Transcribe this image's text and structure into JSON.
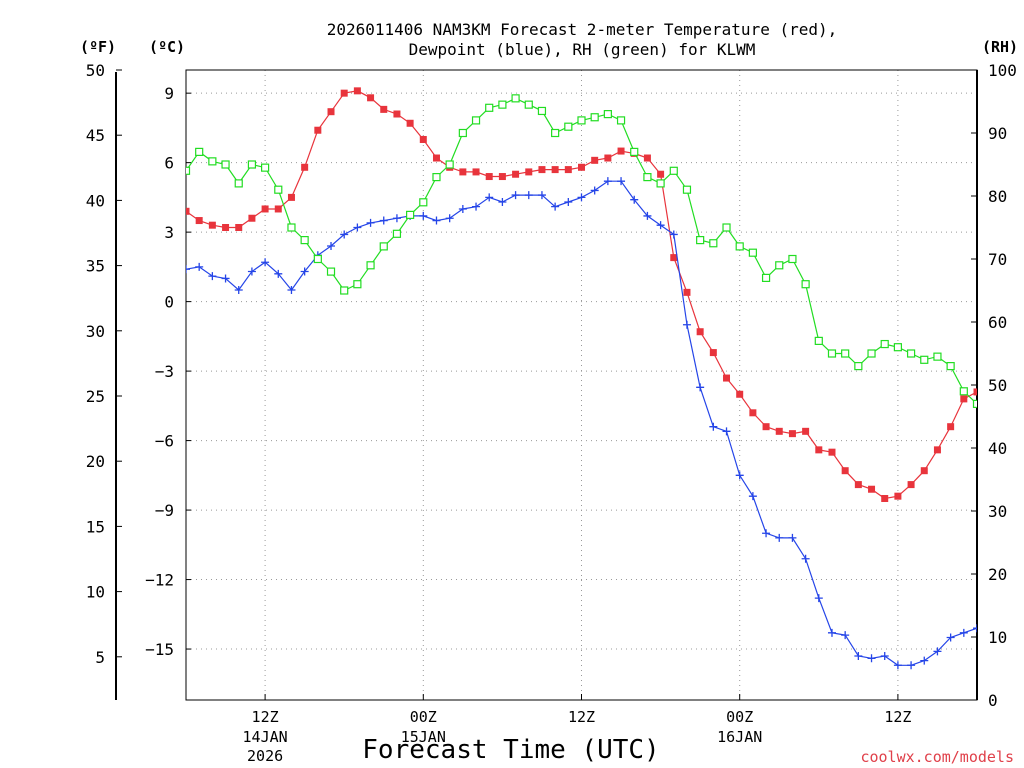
{
  "chart_data": {
    "type": "line",
    "title_line1": "2026011406 NAM3KM Forecast 2-meter Temperature (red),",
    "title_line2": "Dewpoint (blue), RH (green) for KLWM",
    "xlabel": "Forecast Time (UTC)",
    "credit": "coolwx.com/models",
    "units": {
      "fahrenheit": "(ºF)",
      "celsius": "(ºC)",
      "rh": "(RH)"
    },
    "left_axis_c": {
      "ylim": [
        -17.2,
        10.0
      ],
      "ticks": [
        9,
        6,
        3,
        0,
        -3,
        -6,
        -9,
        -12,
        -15
      ],
      "tick_labels": [
        "9",
        "6",
        "3",
        "0",
        "−3",
        "−6",
        "−9",
        "−12",
        "−15"
      ]
    },
    "left_axis_f": {
      "ticks": [
        50,
        45,
        40,
        35,
        30,
        25,
        20,
        15,
        10,
        5
      ],
      "tick_labels": [
        "50",
        "45",
        "40",
        "35",
        "30",
        "25",
        "20",
        "15",
        "10",
        "5"
      ]
    },
    "right_axis_rh": {
      "ylim": [
        0,
        100
      ],
      "ticks": [
        100,
        90,
        80,
        70,
        60,
        50,
        40,
        30,
        20,
        10,
        0
      ],
      "tick_labels": [
        "100",
        "90",
        "80",
        "70",
        "60",
        "50",
        "40",
        "30",
        "20",
        "10",
        "0"
      ]
    },
    "x_axis": {
      "unit": "forecast hour",
      "xlim": [
        0,
        60
      ],
      "ticks": [
        {
          "hour": 6,
          "label": "12Z",
          "date": "14JAN",
          "year": "2026"
        },
        {
          "hour": 18,
          "label": "00Z",
          "date": "15JAN",
          "year": ""
        },
        {
          "hour": 30,
          "label": "12Z",
          "date": "",
          "year": ""
        },
        {
          "hour": 42,
          "label": "00Z",
          "date": "16JAN",
          "year": ""
        },
        {
          "hour": 54,
          "label": "12Z",
          "date": "",
          "year": ""
        }
      ]
    },
    "series": [
      {
        "name": "Temperature (red)",
        "unit": "C",
        "color": "#e8343c",
        "marker": "filled-square",
        "x": [
          0,
          1,
          2,
          3,
          4,
          5,
          6,
          7,
          8,
          9,
          10,
          11,
          12,
          13,
          14,
          15,
          16,
          17,
          18,
          19,
          20,
          21,
          22,
          23,
          24,
          25,
          26,
          27,
          28,
          29,
          30,
          31,
          32,
          33,
          34,
          35,
          36,
          37,
          38,
          39,
          40,
          41,
          42,
          43,
          44,
          45,
          46,
          47,
          48,
          49,
          50,
          51,
          52,
          53,
          54,
          55,
          56,
          57,
          58,
          59,
          60
        ],
        "values": [
          3.9,
          3.5,
          3.3,
          3.2,
          3.2,
          3.6,
          4.0,
          4.0,
          4.5,
          5.8,
          7.4,
          8.2,
          9.0,
          9.1,
          8.8,
          8.3,
          8.1,
          7.7,
          7.0,
          6.2,
          5.8,
          5.6,
          5.6,
          5.4,
          5.4,
          5.5,
          5.6,
          5.7,
          5.7,
          5.7,
          5.8,
          6.1,
          6.2,
          6.5,
          6.4,
          6.2,
          5.5,
          1.9,
          0.4,
          -1.3,
          -2.2,
          -3.3,
          -4.0,
          -4.8,
          -5.4,
          -5.6,
          -5.7,
          -5.6,
          -6.4,
          -6.5,
          -7.3,
          -7.9,
          -8.1,
          -8.5,
          -8.4,
          -7.9,
          -7.3,
          -6.4,
          -5.4,
          -4.2,
          -3.9
        ]
      },
      {
        "name": "Dewpoint (blue)",
        "unit": "C",
        "color": "#2545e8",
        "marker": "plus",
        "x": [
          0,
          1,
          2,
          3,
          4,
          5,
          6,
          7,
          8,
          9,
          10,
          11,
          12,
          13,
          14,
          15,
          16,
          17,
          18,
          19,
          20,
          21,
          22,
          23,
          24,
          25,
          26,
          27,
          28,
          29,
          30,
          31,
          32,
          33,
          34,
          35,
          36,
          37,
          38,
          39,
          40,
          41,
          42,
          43,
          44,
          45,
          46,
          47,
          48,
          49,
          50,
          51,
          52,
          53,
          54,
          55,
          56,
          57,
          58,
          59,
          60
        ],
        "values": [
          1.4,
          1.5,
          1.1,
          1.0,
          0.5,
          1.3,
          1.7,
          1.2,
          0.5,
          1.3,
          2.0,
          2.4,
          2.9,
          3.2,
          3.4,
          3.5,
          3.6,
          3.7,
          3.7,
          3.5,
          3.6,
          4.0,
          4.1,
          4.5,
          4.3,
          4.6,
          4.6,
          4.6,
          4.1,
          4.3,
          4.5,
          4.8,
          5.2,
          5.2,
          4.4,
          3.7,
          3.3,
          2.9,
          -1.0,
          -3.7,
          -5.4,
          -5.6,
          -7.5,
          -8.4,
          -10.0,
          -10.2,
          -10.2,
          -11.1,
          -12.8,
          -14.3,
          -14.4,
          -15.3,
          -15.4,
          -15.3,
          -15.7,
          -15.7,
          -15.5,
          -15.1,
          -14.5,
          -14.3,
          -14.1
        ]
      },
      {
        "name": "RH (green)",
        "unit": "%",
        "color": "#22dd22",
        "marker": "open-square",
        "x": [
          0,
          1,
          2,
          3,
          4,
          5,
          6,
          7,
          8,
          9,
          10,
          11,
          12,
          13,
          14,
          15,
          16,
          17,
          18,
          19,
          20,
          21,
          22,
          23,
          24,
          25,
          26,
          27,
          28,
          29,
          30,
          31,
          32,
          33,
          34,
          35,
          36,
          37,
          38,
          39,
          40,
          41,
          42,
          43,
          44,
          45,
          46,
          47,
          48,
          49,
          50,
          51,
          52,
          53,
          54,
          55,
          56,
          57,
          58,
          59,
          60
        ],
        "values": [
          84,
          87,
          85.5,
          85,
          82,
          85,
          84.5,
          81,
          75,
          73,
          70,
          68,
          65,
          66,
          69,
          72,
          74,
          77,
          79,
          83,
          85,
          90,
          92,
          94,
          94.5,
          95.5,
          94.5,
          93.5,
          90,
          91,
          92,
          92.5,
          93,
          92,
          87,
          83,
          82,
          84,
          81,
          73,
          72.5,
          75,
          72,
          71,
          67,
          69,
          70,
          66,
          57,
          55,
          55,
          53,
          55,
          56.5,
          56,
          55,
          54,
          54.5,
          53,
          49,
          47
        ]
      }
    ]
  }
}
